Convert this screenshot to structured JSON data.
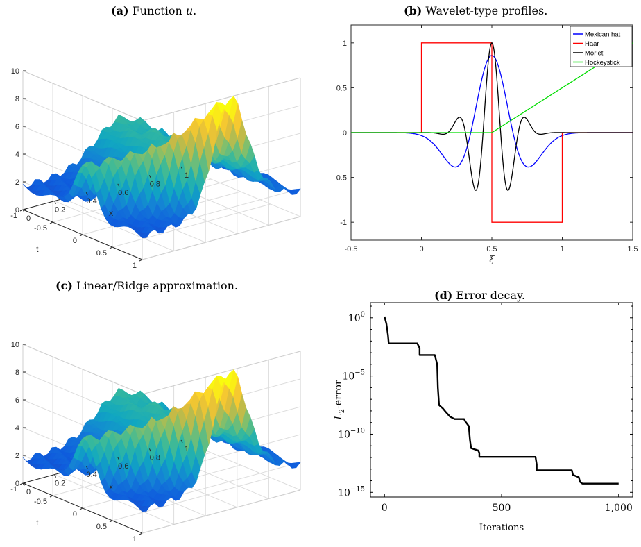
{
  "panels": {
    "a": {
      "label": "(a)",
      "caption": "Function ",
      "caption_var": "u",
      "caption_end": "."
    },
    "b": {
      "label": "(b)",
      "caption": "Wavelet-type profiles."
    },
    "c": {
      "label": "(c)",
      "caption": "Linear/Ridge approximation."
    },
    "d": {
      "label": "(d)",
      "caption": "Error decay."
    }
  },
  "chart_data": [
    {
      "id": "a",
      "type": "surface",
      "xlabel": "x",
      "ylabel": "t",
      "zlabel": "",
      "x_ticks": [
        "0",
        "0.2",
        "0.4",
        "0.6",
        "0.8",
        "1"
      ],
      "t_ticks": [
        "-1",
        "-0.5",
        "0",
        "0.5",
        "1"
      ],
      "z_ticks": [
        "0",
        "2",
        "4",
        "6",
        "8",
        "10"
      ],
      "xlim": [
        0,
        1
      ],
      "tlim": [
        -1,
        1
      ],
      "zlim": [
        0,
        10
      ],
      "colormap": "parula"
    },
    {
      "id": "b",
      "type": "line",
      "xlabel": "ξ",
      "ylabel": "",
      "xlim": [
        -0.5,
        1.5
      ],
      "ylim": [
        -1.2,
        1.2
      ],
      "x_ticks": [
        "-0.5",
        "0",
        "0.5",
        "1",
        "1.5"
      ],
      "y_ticks": [
        "-1",
        "-0.5",
        "0",
        "0.5",
        "1"
      ],
      "legend_position": "top-right",
      "series": [
        {
          "name": "Mexican hat",
          "color": "#0000ff",
          "formula": "mexican_hat",
          "center": 0.5,
          "width": 0.15,
          "amplitude": 0.86
        },
        {
          "name": "Haar",
          "color": "#ff0000",
          "formula": "haar",
          "points": [
            [
              -0.5,
              0
            ],
            [
              0,
              0
            ],
            [
              0,
              1
            ],
            [
              0.5,
              1
            ],
            [
              0.5,
              -1
            ],
            [
              1,
              -1
            ],
            [
              1,
              0
            ],
            [
              1.5,
              0
            ]
          ]
        },
        {
          "name": "Morlet",
          "color": "#000000",
          "formula": "morlet",
          "center": 0.5,
          "width": 0.18,
          "frequency": 25.13
        },
        {
          "name": "Hockeystick",
          "color": "#00dd00",
          "formula": "hockeystick",
          "points": [
            [
              -0.5,
              0
            ],
            [
              0.5,
              0
            ],
            [
              1.5,
              1
            ]
          ]
        }
      ]
    },
    {
      "id": "c",
      "type": "surface",
      "xlabel": "x",
      "ylabel": "t",
      "zlabel": "",
      "x_ticks": [
        "0",
        "0.2",
        "0.4",
        "0.6",
        "0.8",
        "1"
      ],
      "t_ticks": [
        "-1",
        "-0.5",
        "0",
        "0.5",
        "1"
      ],
      "z_ticks": [
        "0",
        "2",
        "4",
        "6",
        "8",
        "10"
      ],
      "xlim": [
        0,
        1
      ],
      "tlim": [
        -1,
        1
      ],
      "zlim": [
        0,
        10
      ],
      "colormap": "parula"
    },
    {
      "id": "d",
      "type": "line",
      "xlabel": "Iterations",
      "ylabel": "L2-error",
      "ylabel_main": "L",
      "ylabel_sub": "2",
      "ylabel_rest": "-error",
      "yscale": "log",
      "xlim": [
        -60,
        1060
      ],
      "ylim_exp": [
        -15.4,
        1.3
      ],
      "x_ticks": [
        {
          "v": 0,
          "t": "0"
        },
        {
          "v": 500,
          "t": "500"
        },
        {
          "v": 1000,
          "t": "1,000"
        }
      ],
      "y_ticks": [
        {
          "e": 0,
          "t": "10",
          "sup": "0"
        },
        {
          "e": -5,
          "t": "10",
          "sup": "−5"
        },
        {
          "e": -10,
          "t": "10",
          "sup": "−10"
        },
        {
          "e": -15,
          "t": "10",
          "sup": "−15"
        }
      ],
      "series": [
        {
          "name": "",
          "color": "#000000",
          "log10_points": [
            [
              0,
              0.1
            ],
            [
              8,
              -0.5
            ],
            [
              15,
              -1.5
            ],
            [
              18,
              -2.2
            ],
            [
              140,
              -2.2
            ],
            [
              150,
              -2.6
            ],
            [
              150,
              -3.2
            ],
            [
              215,
              -3.2
            ],
            [
              225,
              -4.0
            ],
            [
              228,
              -6.0
            ],
            [
              233,
              -7.5
            ],
            [
              250,
              -7.8
            ],
            [
              262,
              -8.1
            ],
            [
              280,
              -8.5
            ],
            [
              300,
              -8.7
            ],
            [
              340,
              -8.7
            ],
            [
              345,
              -8.9
            ],
            [
              360,
              -9.3
            ],
            [
              365,
              -10.5
            ],
            [
              370,
              -11.2
            ],
            [
              400,
              -11.4
            ],
            [
              405,
              -11.6
            ],
            [
              405,
              -11.95
            ],
            [
              645,
              -11.95
            ],
            [
              650,
              -12.6
            ],
            [
              650,
              -13.1
            ],
            [
              800,
              -13.1
            ],
            [
              805,
              -13.5
            ],
            [
              830,
              -13.7
            ],
            [
              835,
              -14.1
            ],
            [
              845,
              -14.25
            ],
            [
              1000,
              -14.25
            ]
          ]
        }
      ]
    }
  ]
}
